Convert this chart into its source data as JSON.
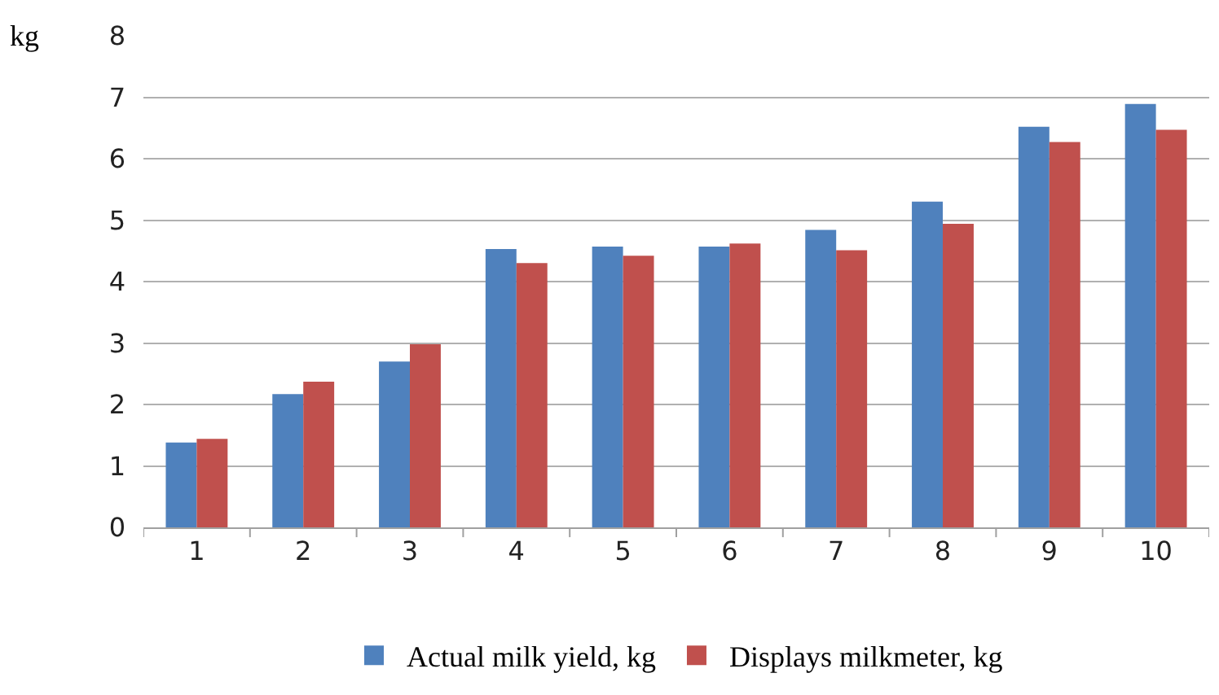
{
  "chart_data": {
    "type": "bar",
    "ylabel": "kg",
    "categories": [
      "1",
      "2",
      "3",
      "4",
      "5",
      "6",
      "7",
      "8",
      "9",
      "10"
    ],
    "series": [
      {
        "name": "Actual milk yield, kg",
        "color": "#4f81bd",
        "values": [
          1.38,
          2.17,
          2.7,
          4.53,
          4.57,
          4.57,
          4.84,
          5.3,
          6.52,
          6.89
        ]
      },
      {
        "name": "Displays milkmeter, kg",
        "color": "#c0504d",
        "values": [
          1.44,
          2.37,
          2.98,
          4.3,
          4.42,
          4.62,
          4.51,
          4.94,
          6.27,
          6.47
        ]
      }
    ],
    "ylim": [
      0,
      8
    ],
    "yticks": [
      0,
      1,
      2,
      3,
      4,
      5,
      6,
      7,
      8
    ],
    "grid": "y",
    "legend": "bottom"
  }
}
